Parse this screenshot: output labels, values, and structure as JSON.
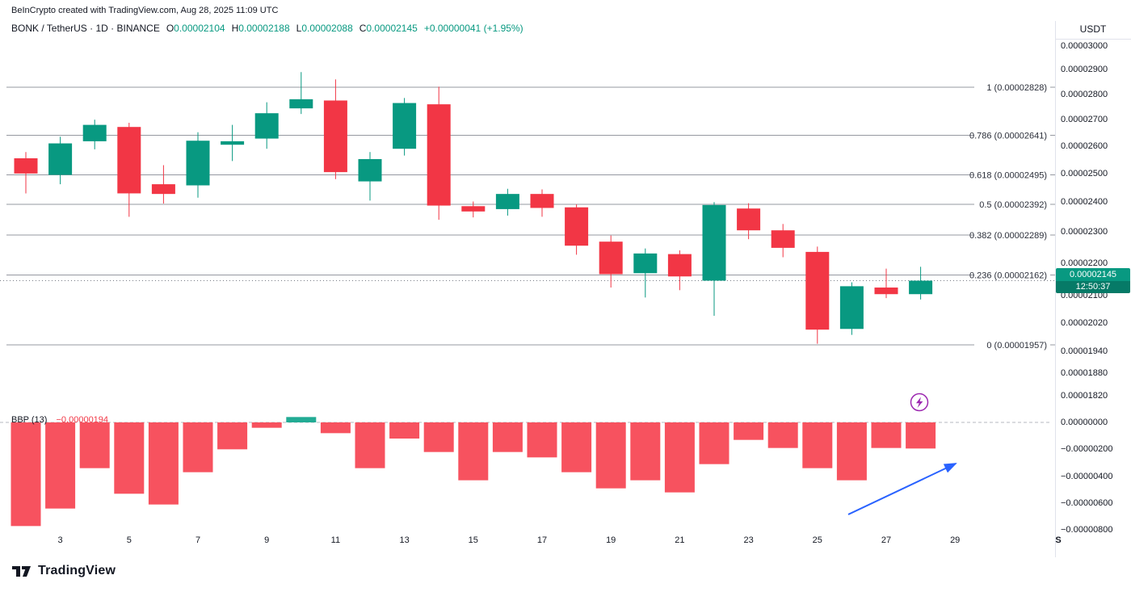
{
  "attribution": "BeInCrypto created with TradingView.com, Aug 28, 2025 11:09 UTC",
  "header": {
    "title": "BONK / TetherUS · 1D · BINANCE",
    "ohlc": [
      {
        "label": "O",
        "value": "0.00002104"
      },
      {
        "label": "H",
        "value": "0.00002188"
      },
      {
        "label": "L",
        "value": "0.00002088"
      },
      {
        "label": "C",
        "value": "0.00002145"
      }
    ],
    "change": "+0.00000041 (+1.95%)"
  },
  "price_axis": {
    "currency": "USDT",
    "labels": [
      {
        "t": "0.00003000",
        "v": 3e-05
      },
      {
        "t": "0.00002900",
        "v": 2.9e-05
      },
      {
        "t": "0.00002800",
        "v": 2.8e-05
      },
      {
        "t": "0.00002700",
        "v": 2.7e-05
      },
      {
        "t": "0.00002600",
        "v": 2.6e-05
      },
      {
        "t": "0.00002500",
        "v": 2.5e-05
      },
      {
        "t": "0.00002400",
        "v": 2.4e-05
      },
      {
        "t": "0.00002300",
        "v": 2.3e-05
      },
      {
        "t": "0.00002200",
        "v": 2.2e-05
      },
      {
        "t": "0.00002100",
        "v": 2.1e-05
      },
      {
        "t": "0.00002020",
        "v": 2.02e-05
      },
      {
        "t": "0.00001940",
        "v": 1.94e-05
      },
      {
        "t": "0.00001880",
        "v": 1.88e-05
      },
      {
        "t": "0.00001820",
        "v": 1.82e-05
      }
    ],
    "last_price": {
      "text": "0.00002145",
      "countdown": "12:50:37"
    }
  },
  "chart_data": [
    {
      "type": "candlestick",
      "symbol": "BONK/USDT",
      "exchange": "BINANCE",
      "interval": "1D",
      "scale": {
        "type": "log",
        "top": 3.031e-05,
        "bottom": 1.774e-05
      },
      "last_price": 2.145e-05,
      "fib_levels": [
        {
          "level": "1",
          "price": 2.828e-05,
          "label": "1 (0.00002828)"
        },
        {
          "level": "0.786",
          "price": 2.641e-05,
          "label": "0.786 (0.00002641)"
        },
        {
          "level": "0.618",
          "price": 2.495e-05,
          "label": "0.618 (0.00002495)"
        },
        {
          "level": "0.5",
          "price": 2.392e-05,
          "label": "0.5 (0.00002392)"
        },
        {
          "level": "0.382",
          "price": 2.289e-05,
          "label": "0.382 (0.00002289)"
        },
        {
          "level": "0.236",
          "price": 2.162e-05,
          "label": "0.236 (0.00002162)"
        },
        {
          "level": "0",
          "price": 1.957e-05,
          "label": "0 (0.00001957)"
        }
      ],
      "candles": [
        {
          "d": "Aug 2",
          "o": 2.555e-05,
          "h": 2.578e-05,
          "l": 2.43e-05,
          "c": 2.5e-05
        },
        {
          "d": "Aug 3",
          "o": 2.495e-05,
          "h": 2.635e-05,
          "l": 2.462e-05,
          "c": 2.61e-05
        },
        {
          "d": "Aug 4",
          "o": 2.618e-05,
          "h": 2.7e-05,
          "l": 2.588e-05,
          "c": 2.68e-05
        },
        {
          "d": "Aug 5",
          "o": 2.672e-05,
          "h": 2.688e-05,
          "l": 2.35e-05,
          "c": 2.43e-05
        },
        {
          "d": "Aug 6",
          "o": 2.462e-05,
          "h": 2.53e-05,
          "l": 2.395e-05,
          "c": 2.428e-05
        },
        {
          "d": "Aug 7",
          "o": 2.458e-05,
          "h": 2.652e-05,
          "l": 2.415e-05,
          "c": 2.62e-05
        },
        {
          "d": "Aug 8",
          "o": 2.605e-05,
          "h": 2.68e-05,
          "l": 2.545e-05,
          "c": 2.618e-05
        },
        {
          "d": "Aug 9",
          "o": 2.628e-05,
          "h": 2.768e-05,
          "l": 2.59e-05,
          "c": 2.725e-05
        },
        {
          "d": "Aug 10",
          "o": 2.744e-05,
          "h": 2.89e-05,
          "l": 2.722e-05,
          "c": 2.78e-05
        },
        {
          "d": "Aug 11",
          "o": 2.775e-05,
          "h": 2.86e-05,
          "l": 2.48e-05,
          "c": 2.505e-05
        },
        {
          "d": "Aug 12",
          "o": 2.472e-05,
          "h": 2.578e-05,
          "l": 2.405e-05,
          "c": 2.552e-05
        },
        {
          "d": "Aug 13",
          "o": 2.59e-05,
          "h": 2.785e-05,
          "l": 2.565e-05,
          "c": 2.765e-05
        },
        {
          "d": "Aug 14",
          "o": 2.76e-05,
          "h": 2.83e-05,
          "l": 2.34e-05,
          "c": 2.388e-05
        },
        {
          "d": "Aug 15",
          "o": 2.386e-05,
          "h": 2.402e-05,
          "l": 2.348e-05,
          "c": 2.368e-05
        },
        {
          "d": "Aug 16",
          "o": 2.376e-05,
          "h": 2.446e-05,
          "l": 2.354e-05,
          "c": 2.428e-05
        },
        {
          "d": "Aug 17",
          "o": 2.428e-05,
          "h": 2.444e-05,
          "l": 2.35e-05,
          "c": 2.38e-05
        },
        {
          "d": "Aug 18",
          "o": 2.382e-05,
          "h": 2.392e-05,
          "l": 2.226e-05,
          "c": 2.255e-05
        },
        {
          "d": "Aug 19",
          "o": 2.268e-05,
          "h": 2.288e-05,
          "l": 2.124e-05,
          "c": 2.165e-05
        },
        {
          "d": "Aug 20",
          "o": 2.168e-05,
          "h": 2.246e-05,
          "l": 2.094e-05,
          "c": 2.23e-05
        },
        {
          "d": "Aug 21",
          "o": 2.228e-05,
          "h": 2.24e-05,
          "l": 2.116e-05,
          "c": 2.158e-05
        },
        {
          "d": "Aug 22",
          "o": 2.145e-05,
          "h": 2.4e-05,
          "l": 2.04e-05,
          "c": 2.39e-05
        },
        {
          "d": "Aug 23",
          "o": 2.378e-05,
          "h": 2.396e-05,
          "l": 2.276e-05,
          "c": 2.305e-05
        },
        {
          "d": "Aug 24",
          "o": 2.305e-05,
          "h": 2.326e-05,
          "l": 2.218e-05,
          "c": 2.248e-05
        },
        {
          "d": "Aug 25",
          "o": 2.235e-05,
          "h": 2.252e-05,
          "l": 1.96e-05,
          "c": 2e-05
        },
        {
          "d": "Aug 26",
          "o": 2.002e-05,
          "h": 2.14e-05,
          "l": 1.985e-05,
          "c": 2.128e-05
        },
        {
          "d": "Aug 27",
          "o": 2.124e-05,
          "h": 2.182e-05,
          "l": 2.092e-05,
          "c": 2.104e-05
        },
        {
          "d": "Aug 28",
          "o": 2.104e-05,
          "h": 2.188e-05,
          "l": 2.088e-05,
          "c": 2.145e-05
        }
      ]
    },
    {
      "type": "bar",
      "title": "BBP (13)",
      "current": "−0.00000194",
      "ylim": [
        -8.34e-06,
        6.6e-07
      ],
      "axis_labels": [
        {
          "t": "0.00000000",
          "v": 0
        },
        {
          "t": "−0.00000200",
          "v": -2e-06
        },
        {
          "t": "−0.00000400",
          "v": -4e-06
        },
        {
          "t": "−0.00000600",
          "v": -6e-06
        },
        {
          "t": "−0.00000800",
          "v": -8e-06
        }
      ],
      "values": [
        -7.7e-06,
        -6.4e-06,
        -3.4e-06,
        -5.3e-06,
        -6.1e-06,
        -3.7e-06,
        -2e-06,
        -4e-07,
        4e-07,
        -8e-07,
        -3.4e-06,
        -1.2e-06,
        -2.2e-06,
        -4.3e-06,
        -2.2e-06,
        -2.6e-06,
        -3.7e-06,
        -4.9e-06,
        -4.3e-06,
        -5.2e-06,
        -3.1e-06,
        -1.3e-06,
        -1.9e-06,
        -3.4e-06,
        -4.3e-06,
        -1.9e-06,
        -1.94e-06
      ]
    }
  ],
  "time_axis": {
    "ticks": [
      {
        "t": "3",
        "i": 1
      },
      {
        "t": "5",
        "i": 3
      },
      {
        "t": "7",
        "i": 5
      },
      {
        "t": "9",
        "i": 7
      },
      {
        "t": "11",
        "i": 9
      },
      {
        "t": "13",
        "i": 11
      },
      {
        "t": "15",
        "i": 13
      },
      {
        "t": "17",
        "i": 15
      },
      {
        "t": "19",
        "i": 17
      },
      {
        "t": "21",
        "i": 19
      },
      {
        "t": "23",
        "i": 21
      },
      {
        "t": "25",
        "i": 23
      },
      {
        "t": "27",
        "i": 25
      },
      {
        "t": "29",
        "i": 27
      },
      {
        "t": "S",
        "i": 30,
        "bold": true
      }
    ]
  },
  "logo": {
    "text": "TradingView"
  },
  "icons": {
    "chart_marker": "lightning-bolt-icon",
    "annotation": "trend-arrow-icon",
    "brand": "tradingview-logo-icon"
  },
  "colors": {
    "up": "#089981",
    "down": "#f23645",
    "bbp_pos": "#22ab94",
    "bbp_neg": "#f7525f",
    "fib_line": "#9598a1",
    "fib_text": "#2a2e39",
    "dotted_price_line": "#787b86",
    "zero_line": "#b6b8bf",
    "arrow_blue": "#2962ff",
    "marker_purple": "#9c27b0",
    "tag_bg": "#089981"
  }
}
